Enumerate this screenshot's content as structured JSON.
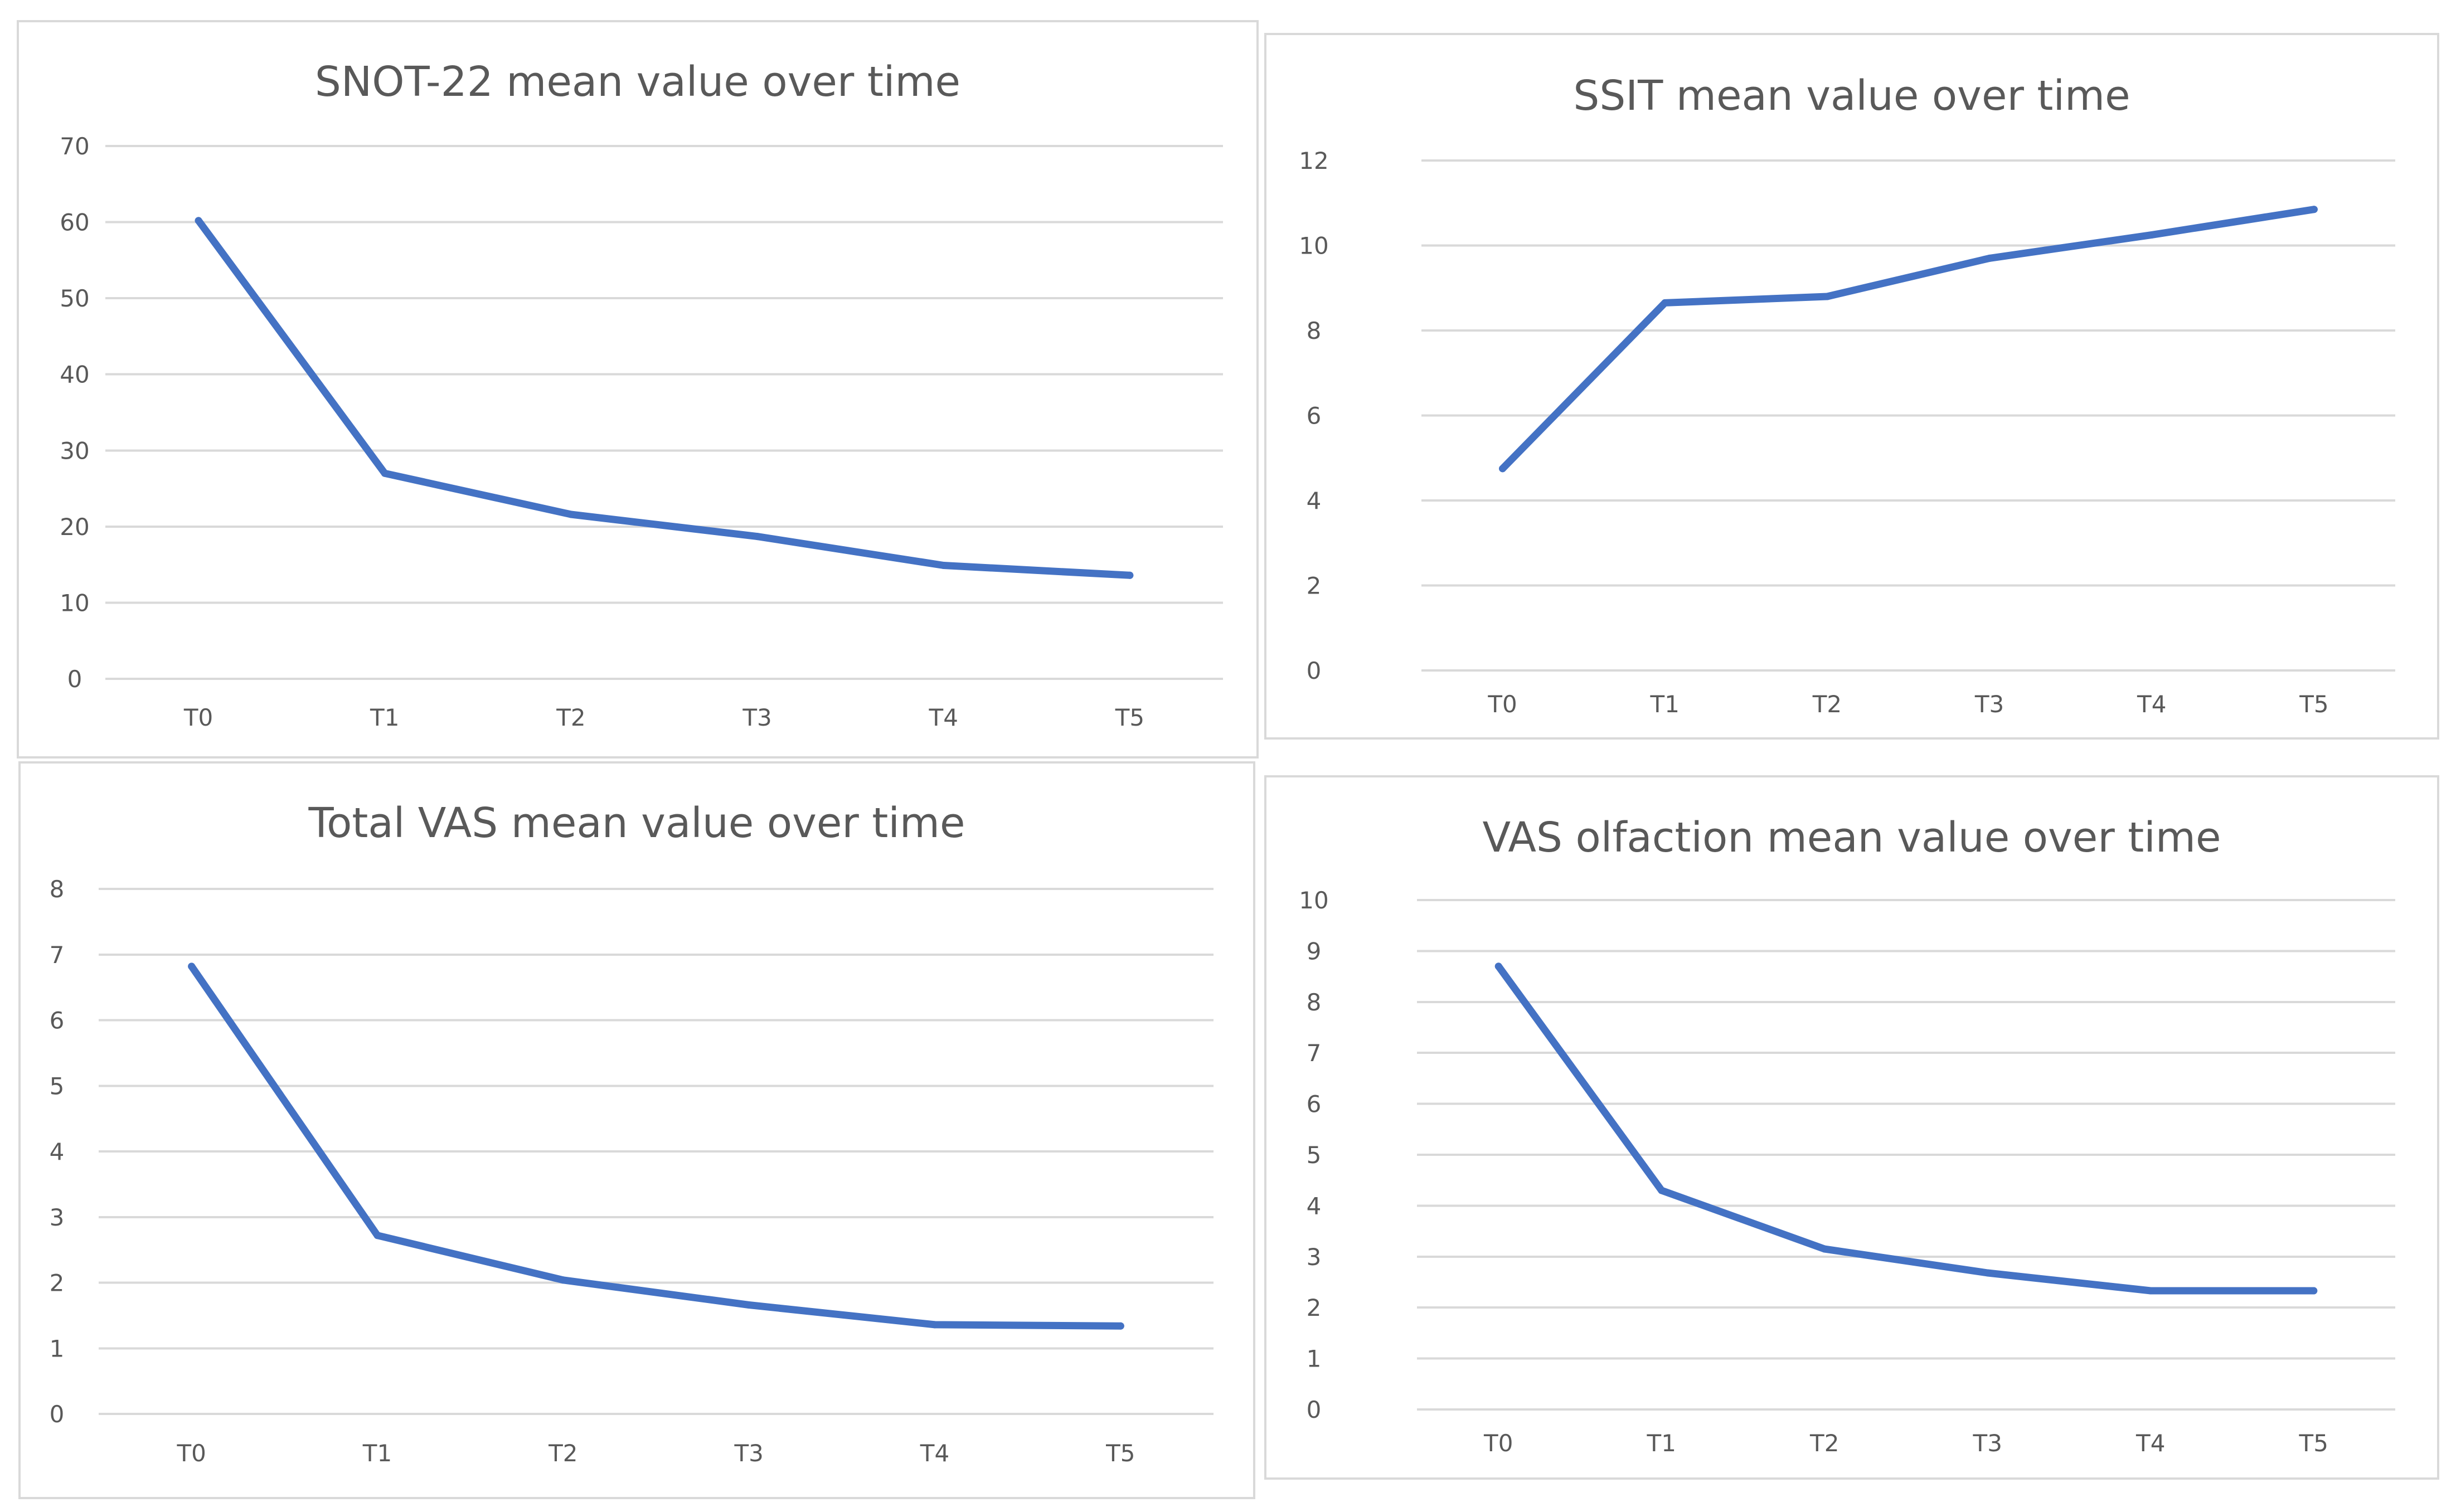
{
  "figure": {
    "series_color": "#4472c4",
    "grid_color": "#d9d9d9",
    "text_color": "#595959"
  },
  "chart_data": [
    {
      "id": "snot22",
      "type": "line",
      "title": "SNOT-22 mean value over time",
      "categories": [
        "T0",
        "T1",
        "T2",
        "T3",
        "T4",
        "T5"
      ],
      "series": [
        {
          "name": "SNOT-22",
          "values": [
            60.2,
            27.0,
            21.6,
            18.7,
            14.9,
            13.6
          ]
        }
      ],
      "ylim": [
        0,
        70
      ],
      "yticks": [
        0,
        10,
        20,
        30,
        40,
        50,
        60,
        70
      ],
      "xlabel": "",
      "ylabel": "",
      "grid": true,
      "legend": "none"
    },
    {
      "id": "ssit",
      "type": "line",
      "title": "SSIT mean value over time",
      "categories": [
        "T0",
        "T1",
        "T2",
        "T3",
        "T4",
        "T5"
      ],
      "series": [
        {
          "name": "SSIT",
          "values": [
            4.75,
            8.65,
            8.8,
            9.7,
            10.25,
            10.85
          ]
        }
      ],
      "ylim": [
        0,
        12
      ],
      "yticks": [
        0,
        2,
        4,
        6,
        8,
        10,
        12
      ],
      "xlabel": "",
      "ylabel": "",
      "grid": true,
      "legend": "none"
    },
    {
      "id": "total-vas",
      "type": "line",
      "title": "Total VAS mean value over time",
      "categories": [
        "T0",
        "T1",
        "T2",
        "T3",
        "T4",
        "T5"
      ],
      "series": [
        {
          "name": "Total VAS",
          "values": [
            6.82,
            2.72,
            2.04,
            1.66,
            1.36,
            1.34
          ]
        }
      ],
      "ylim": [
        0,
        8
      ],
      "yticks": [
        0,
        1,
        2,
        3,
        4,
        5,
        6,
        7,
        8
      ],
      "xlabel": "",
      "ylabel": "",
      "grid": true,
      "legend": "none"
    },
    {
      "id": "vas-olfaction",
      "type": "line",
      "title": "VAS olfaction mean value over time",
      "categories": [
        "T0",
        "T1",
        "T2",
        "T3",
        "T4",
        "T5"
      ],
      "series": [
        {
          "name": "VAS olfaction",
          "values": [
            8.7,
            4.3,
            3.15,
            2.68,
            2.33,
            2.33
          ]
        }
      ],
      "ylim": [
        0,
        10
      ],
      "yticks": [
        0,
        1,
        2,
        3,
        4,
        5,
        6,
        7,
        8,
        9,
        10
      ],
      "xlabel": "",
      "ylabel": "",
      "grid": true,
      "legend": "none"
    }
  ]
}
